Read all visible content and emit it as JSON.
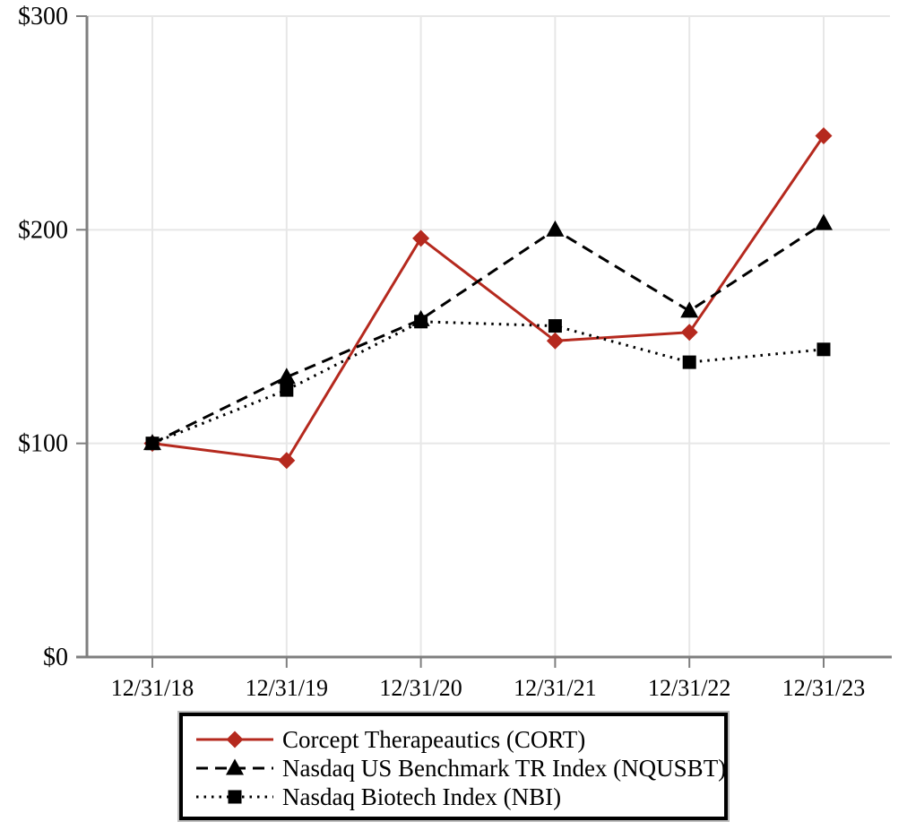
{
  "chart_data": {
    "type": "line",
    "title": "",
    "xlabel": "",
    "ylabel": "",
    "categories": [
      "12/31/18",
      "12/31/19",
      "12/31/20",
      "12/31/21",
      "12/31/22",
      "12/31/23"
    ],
    "series": [
      {
        "name": "Corcept Therapeautics (CORT)",
        "values": [
          100,
          92,
          196,
          148,
          152,
          244
        ],
        "color": "#b5291e",
        "line_style": "solid",
        "marker": "diamond"
      },
      {
        "name": "Nasdaq US Benchmark TR Index (NQUSBT)",
        "values": [
          100,
          131,
          158,
          200,
          162,
          203
        ],
        "color": "#000000",
        "line_style": "dashed",
        "marker": "triangle"
      },
      {
        "name": "Nasdaq Biotech Index (NBI)",
        "values": [
          100,
          125,
          157,
          155,
          138,
          144
        ],
        "color": "#000000",
        "line_style": "dotted",
        "marker": "square"
      }
    ],
    "ylim": [
      0,
      300
    ],
    "yticks": [
      0,
      100,
      200,
      300
    ],
    "ytick_labels": [
      "$0",
      "$100",
      "$200",
      "$300"
    ],
    "grid": true,
    "legend_position": "bottom",
    "axis_color": "#7f7f7f",
    "grid_color": "#e7e7e7",
    "background_color": "#ffffff"
  }
}
